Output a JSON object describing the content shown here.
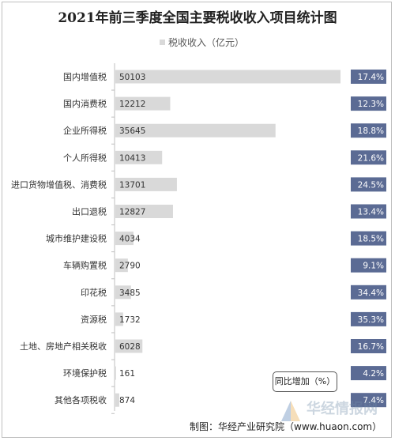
{
  "chart_data": {
    "type": "bar",
    "title": "2021年前三季度全国主要税收收入项目统计图",
    "legend": "税收收入（亿元）",
    "categories": [
      "国内增值税",
      "国内消费税",
      "企业所得税",
      "个人所得税",
      "进口货物增值税、消费税",
      "出口退税",
      "城市维护建设税",
      "车辆购置税",
      "印花税",
      "资源税",
      "土地、房地产相关税收",
      "环境保护税",
      "其他各项税收"
    ],
    "series": [
      {
        "name": "税收收入（亿元）",
        "values": [
          50103,
          12212,
          35645,
          10413,
          13701,
          12827,
          4034,
          2790,
          3485,
          1732,
          6028,
          161,
          874
        ]
      },
      {
        "name": "同比增加（%）",
        "values": [
          "17.4%",
          "12.3%",
          "18.8%",
          "21.6%",
          "24.5%",
          "13.4%",
          "18.5%",
          "9.1%",
          "34.4%",
          "35.3%",
          "16.7%",
          "4.2%",
          "7.4%"
        ]
      }
    ],
    "xlim": [
      0,
      50103
    ],
    "grid": false,
    "colors": {
      "bar": "#d9d9d9",
      "yoy_box": "#5b6b94"
    }
  },
  "yoy_tag": "同比增加（%）",
  "footer": "制图：华经产业研究院（www.huaon.com）",
  "watermark": "华经情报网"
}
